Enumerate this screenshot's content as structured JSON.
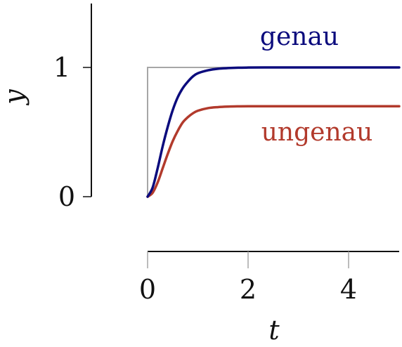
{
  "chart_data": {
    "type": "line",
    "title": "",
    "xlabel": "t",
    "ylabel": "y",
    "xlim": [
      0,
      5
    ],
    "ylim": [
      -0.45,
      1.5
    ],
    "x_ticks": [
      0,
      2,
      4
    ],
    "y_ticks": [
      0,
      1
    ],
    "x_tick_labels": [
      "0",
      "2",
      "4"
    ],
    "y_tick_labels": [
      "0",
      "1"
    ],
    "grid": false,
    "legend": "none",
    "reference": {
      "type": "step",
      "color": "#a6a6a6",
      "x": [
        0,
        0,
        5
      ],
      "y": [
        0,
        1,
        1
      ]
    },
    "series": [
      {
        "name": "genau",
        "color": "#0b0b7d",
        "x": [
          0,
          0.1,
          0.2,
          0.3,
          0.4,
          0.5,
          0.6,
          0.7,
          0.8,
          0.9,
          1.0,
          1.2,
          1.4,
          1.6,
          1.8,
          2.0,
          2.5,
          3.0,
          3.5,
          4.0,
          4.5,
          5.0
        ],
        "y": [
          0,
          0.07,
          0.22,
          0.39,
          0.54,
          0.67,
          0.77,
          0.84,
          0.89,
          0.93,
          0.955,
          0.978,
          0.99,
          0.995,
          0.998,
          0.999,
          1.0,
          1.0,
          1.0,
          1.0,
          1.0,
          1.0
        ]
      },
      {
        "name": "ungenau",
        "color": "#b23a2c",
        "x": [
          0,
          0.1,
          0.2,
          0.3,
          0.4,
          0.5,
          0.6,
          0.7,
          0.8,
          0.9,
          1.0,
          1.2,
          1.4,
          1.6,
          1.8,
          2.0,
          2.5,
          3.0,
          3.5,
          4.0,
          4.5,
          5.0
        ],
        "y": [
          0,
          0.03,
          0.11,
          0.22,
          0.33,
          0.43,
          0.51,
          0.575,
          0.615,
          0.645,
          0.665,
          0.685,
          0.693,
          0.697,
          0.699,
          0.7,
          0.7,
          0.7,
          0.7,
          0.7,
          0.7,
          0.7
        ]
      }
    ]
  }
}
